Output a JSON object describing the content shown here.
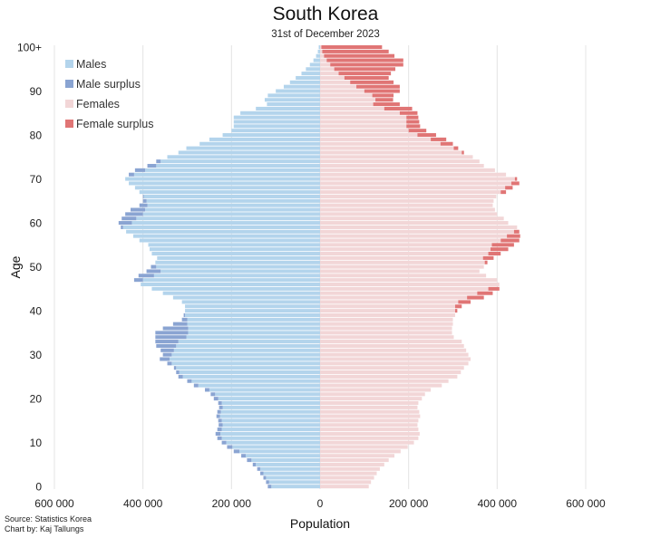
{
  "chart_data": {
    "type": "bar",
    "orientation": "horizontal-population-pyramid",
    "title": "South Korea",
    "subtitle": "31st of December 2023",
    "xlabel": "Population",
    "ylabel": "Age",
    "xlim": [
      -600000,
      600000
    ],
    "x_ticks": [
      -600000,
      -400000,
      -200000,
      0,
      200000,
      400000,
      600000
    ],
    "x_tick_labels": [
      "600 000",
      "400 000",
      "200 000",
      "0",
      "200 000",
      "400 000",
      "600 000"
    ],
    "y_ticks": [
      0,
      10,
      20,
      30,
      40,
      50,
      60,
      70,
      80,
      90,
      100
    ],
    "y_tick_labels": [
      "0",
      "10",
      "20",
      "30",
      "40",
      "50",
      "60",
      "70",
      "80",
      "90",
      "100+"
    ],
    "grid": "vertical",
    "legend_position": "top-left",
    "legend": [
      {
        "label": "Males",
        "color": "#b3d4ec"
      },
      {
        "label": "Male surplus",
        "color": "#8aa4d2"
      },
      {
        "label": "Females",
        "color": "#f2d6d7"
      },
      {
        "label": "Female surplus",
        "color": "#e07575"
      }
    ],
    "ages": [
      0,
      1,
      2,
      3,
      4,
      5,
      6,
      7,
      8,
      9,
      10,
      11,
      12,
      13,
      14,
      15,
      16,
      17,
      18,
      19,
      20,
      21,
      22,
      23,
      24,
      25,
      26,
      27,
      28,
      29,
      30,
      31,
      32,
      33,
      34,
      35,
      36,
      37,
      38,
      39,
      40,
      41,
      42,
      43,
      44,
      45,
      46,
      47,
      48,
      49,
      50,
      51,
      52,
      53,
      54,
      55,
      56,
      57,
      58,
      59,
      60,
      61,
      62,
      63,
      64,
      65,
      66,
      67,
      68,
      69,
      70,
      71,
      72,
      73,
      74,
      75,
      76,
      77,
      78,
      79,
      80,
      81,
      82,
      83,
      84,
      85,
      86,
      87,
      88,
      89,
      90,
      91,
      92,
      93,
      94,
      95,
      96,
      97,
      98,
      99,
      100
    ],
    "series": [
      {
        "name": "Males",
        "values": [
          118000,
          122000,
          128000,
          135000,
          142000,
          152000,
          165000,
          178000,
          195000,
          210000,
          222000,
          232000,
          236000,
          232000,
          229000,
          230000,
          234000,
          232000,
          228000,
          230000,
          240000,
          247000,
          260000,
          285000,
          300000,
          320000,
          325000,
          330000,
          345000,
          362000,
          355000,
          360000,
          370000,
          372000,
          372000,
          372000,
          355000,
          332000,
          312000,
          308000,
          305000,
          305000,
          312000,
          332000,
          355000,
          380000,
          405000,
          420000,
          410000,
          392000,
          382000,
          372000,
          368000,
          380000,
          385000,
          388000,
          408000,
          422000,
          438000,
          450000,
          455000,
          448000,
          440000,
          428000,
          408000,
          400000,
          400000,
          408000,
          418000,
          432000,
          440000,
          432000,
          418000,
          390000,
          370000,
          345000,
          320000,
          302000,
          272000,
          250000,
          220000,
          200000,
          195000,
          195000,
          195000,
          180000,
          145000,
          120000,
          125000,
          118000,
          100000,
          82000,
          68000,
          55000,
          42000,
          32000,
          23000,
          15000,
          9000,
          5000,
          3000
        ]
      },
      {
        "name": "Females",
        "values": [
          110000,
          115000,
          122000,
          128000,
          135000,
          145000,
          155000,
          168000,
          182000,
          198000,
          212000,
          222000,
          225000,
          222000,
          220000,
          222000,
          226000,
          224000,
          220000,
          222000,
          230000,
          237000,
          250000,
          275000,
          290000,
          310000,
          318000,
          325000,
          335000,
          340000,
          335000,
          330000,
          325000,
          320000,
          302000,
          298000,
          298000,
          300000,
          300000,
          305000,
          310000,
          320000,
          340000,
          370000,
          390000,
          405000,
          405000,
          400000,
          375000,
          360000,
          370000,
          378000,
          392000,
          408000,
          425000,
          438000,
          450000,
          452000,
          450000,
          445000,
          425000,
          415000,
          400000,
          395000,
          390000,
          392000,
          398000,
          420000,
          435000,
          450000,
          445000,
          420000,
          395000,
          370000,
          360000,
          345000,
          325000,
          312000,
          300000,
          285000,
          262000,
          240000,
          226000,
          224000,
          222000,
          220000,
          208000,
          180000,
          165000,
          166000,
          180000,
          180000,
          166000,
          155000,
          160000,
          170000,
          188000,
          188000,
          168000,
          155000,
          140000
        ]
      }
    ]
  }
}
